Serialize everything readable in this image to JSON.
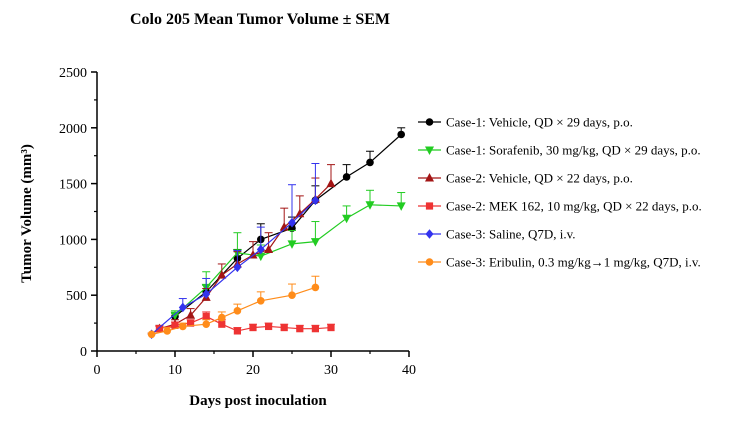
{
  "chart_data": {
    "type": "line",
    "title": "Colo 205 Mean Tumor Volume ± SEM",
    "xlabel": "Days post inoculation",
    "ylabel": "Tumor Volume (mm³)",
    "xlim": [
      0,
      40
    ],
    "ylim": [
      0,
      2500
    ],
    "xticks": [
      0,
      10,
      20,
      30,
      40
    ],
    "yticks": [
      0,
      500,
      1000,
      1500,
      2000,
      2500
    ],
    "grid": false,
    "legend_position": "right",
    "series": [
      {
        "name": "Case-1: Vehicle, QD × 29 days, p.o.",
        "color": "#000000",
        "marker": "circle",
        "x": [
          10,
          14,
          18,
          21,
          25,
          28,
          32,
          35,
          39
        ],
        "y": [
          310,
          530,
          830,
          1000,
          1100,
          1350,
          1560,
          1690,
          1940
        ],
        "err": [
          30,
          60,
          80,
          140,
          100,
          130,
          110,
          100,
          60
        ]
      },
      {
        "name": "Case-1: Sorafenib, 30 mg/kg, QD × 29 days, p.o.",
        "color": "#22cc22",
        "marker": "triangle-down",
        "x": [
          10,
          14,
          18,
          21,
          25,
          28,
          32,
          35,
          39
        ],
        "y": [
          320,
          570,
          880,
          850,
          960,
          980,
          1190,
          1310,
          1300
        ],
        "err": [
          40,
          140,
          180,
          100,
          120,
          180,
          110,
          130,
          120
        ]
      },
      {
        "name": "Case-2: Vehicle, QD × 22 days, p.o.",
        "color": "#a31515",
        "marker": "triangle-up",
        "x": [
          8,
          10,
          12,
          14,
          16,
          18,
          20,
          22,
          24,
          26,
          28,
          30
        ],
        "y": [
          200,
          240,
          320,
          480,
          680,
          780,
          860,
          910,
          1110,
          1230,
          1360,
          1500
        ],
        "err": [
          30,
          40,
          60,
          80,
          100,
          110,
          120,
          150,
          170,
          160,
          190,
          170
        ]
      },
      {
        "name": "Case-2: MEK 162, 10 mg/kg, QD × 22 days, p.o.",
        "color": "#ee3333",
        "marker": "square",
        "x": [
          8,
          10,
          12,
          14,
          16,
          18,
          20,
          22,
          24,
          26,
          28,
          30
        ],
        "y": [
          200,
          230,
          250,
          310,
          240,
          180,
          210,
          220,
          210,
          200,
          200,
          210
        ],
        "err": [
          20,
          30,
          30,
          40,
          40,
          30,
          30,
          30,
          30,
          30,
          30,
          30
        ]
      },
      {
        "name": "Case-3: Saline, Q7D, i.v.",
        "color": "#3333ee",
        "marker": "diamond",
        "x": [
          7,
          11,
          14,
          18,
          21,
          25,
          28
        ],
        "y": [
          150,
          390,
          510,
          750,
          910,
          1150,
          1350
        ],
        "err": [
          10,
          80,
          140,
          150,
          200,
          340,
          330
        ]
      },
      {
        "name": "Case-3: Eribulin, 0.3 mg/kg→1 mg/kg, Q7D, i.v.",
        "color": "#ff8c1a",
        "marker": "circle",
        "x": [
          7,
          9,
          11,
          14,
          16,
          18,
          21,
          25,
          28
        ],
        "y": [
          150,
          180,
          220,
          240,
          300,
          360,
          450,
          500,
          570
        ],
        "err": [
          10,
          30,
          30,
          40,
          50,
          60,
          80,
          100,
          100
        ]
      }
    ]
  }
}
